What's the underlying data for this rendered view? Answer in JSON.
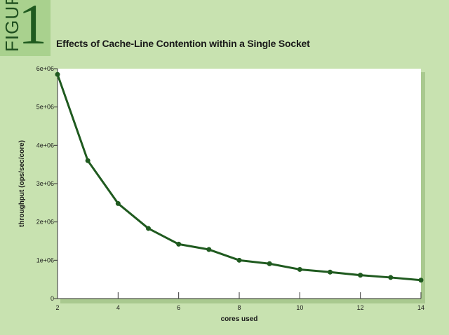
{
  "figure": {
    "word": "FIGURE",
    "number": "1"
  },
  "chart_data": {
    "type": "line",
    "title": "Effects of Cache-Line Contention within a Single Socket",
    "xlabel": "cores used",
    "ylabel": "throughput (ops/sec/core)",
    "xlim": [
      2,
      14
    ],
    "ylim": [
      0,
      6000000
    ],
    "x_ticks": [
      "2",
      "4",
      "6",
      "8",
      "10",
      "12",
      "14"
    ],
    "y_ticks": [
      "0",
      "1e+06",
      "2e+06",
      "3e+06",
      "4e+06",
      "5e+06",
      "6e+06"
    ],
    "grid": false,
    "colors": {
      "line": "#1f5a1f",
      "background": "#c8e2b0",
      "plot": "#ffffff"
    },
    "series": [
      {
        "x": [
          2,
          3,
          4,
          5,
          6,
          7,
          8,
          9,
          10,
          11,
          12,
          13,
          14
        ],
        "y": [
          5850000,
          3600000,
          2480000,
          1830000,
          1420000,
          1280000,
          1000000,
          910000,
          760000,
          690000,
          610000,
          550000,
          480000
        ]
      }
    ]
  }
}
